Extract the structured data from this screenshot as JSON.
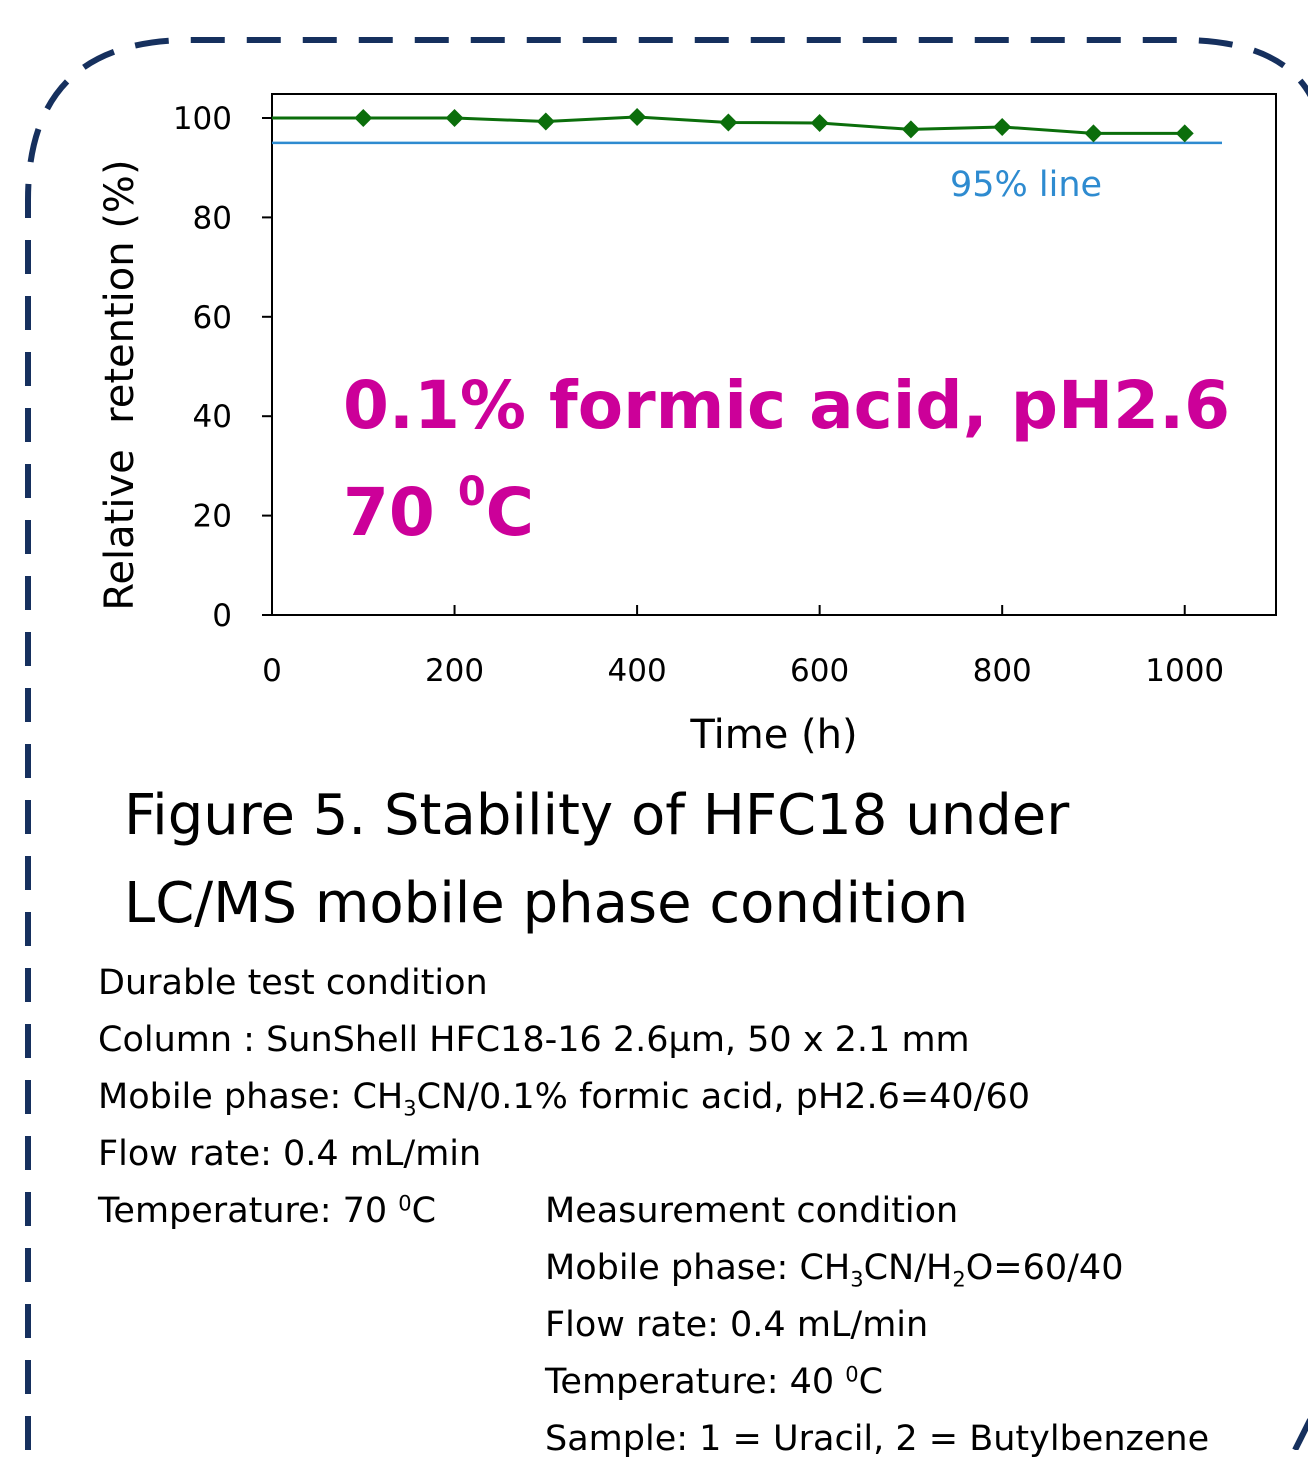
{
  "chart_data": {
    "type": "line",
    "x": [
      0,
      100,
      200,
      300,
      400,
      500,
      600,
      700,
      800,
      900,
      1000
    ],
    "series": [
      {
        "values": [
          100,
          100,
          100,
          99.3,
          100.2,
          99.1,
          99,
          97.7,
          98.2,
          96.9,
          96.9
        ],
        "color": "#0b6e0b",
        "markers": [
          false,
          true,
          true,
          true,
          true,
          true,
          true,
          true,
          true,
          true,
          true
        ]
      }
    ],
    "reference_line": {
      "y": 95,
      "label": "95% line",
      "color": "#2e8bd0"
    },
    "xlabel": "Time (h)",
    "ylabel": "Relative  retention (%)",
    "xlim": [
      0,
      1100
    ],
    "ylim": [
      0,
      100
    ],
    "xticks": [
      0,
      200,
      400,
      600,
      800,
      1000
    ],
    "yticks": [
      0,
      20,
      40,
      60,
      80,
      100
    ],
    "grid": false,
    "annotation": {
      "line1": "0.1% formic acid, pH2.6",
      "line2_prefix": "70 ",
      "line2_sup": "0",
      "line2_suffix": "C",
      "color": "#cc0099"
    }
  },
  "caption": {
    "line1": "Figure 5. Stability of HFC18 under",
    "line2": "LC/MS mobile phase condition"
  },
  "durable": {
    "heading": "Durable test condition",
    "column": "Column :  SunShell HFC18-16 2.6µm, 50 x 2.1 mm",
    "mobile_prefix": "Mobile phase:  CH",
    "mobile_sub": "3",
    "mobile_suffix": "CN/0.1% formic acid, pH2.6=40/60",
    "flow": "Flow rate: 0.4 mL/min",
    "temp_prefix": "Temperature: 70 ",
    "temp_sup": "0",
    "temp_suffix": "C"
  },
  "measurement": {
    "heading": "Measurement condition",
    "mobile_prefix": "Mobile phase: CH",
    "mobile_sub1": "3",
    "mobile_mid": "CN/H",
    "mobile_sub2": "2",
    "mobile_suffix": "O=60/40",
    "flow": "Flow rate: 0.4 mL/min",
    "temp_prefix": "Temperature: 40 ",
    "temp_sup": "0",
    "temp_suffix": "C",
    "sample": "Sample: 1 = Uracil, 2 = Butylbenzene"
  },
  "colors": {
    "frame_dash": "#16305e",
    "series": "#0b6e0b",
    "reference": "#2e8bd0",
    "annotation": "#cc0099"
  }
}
